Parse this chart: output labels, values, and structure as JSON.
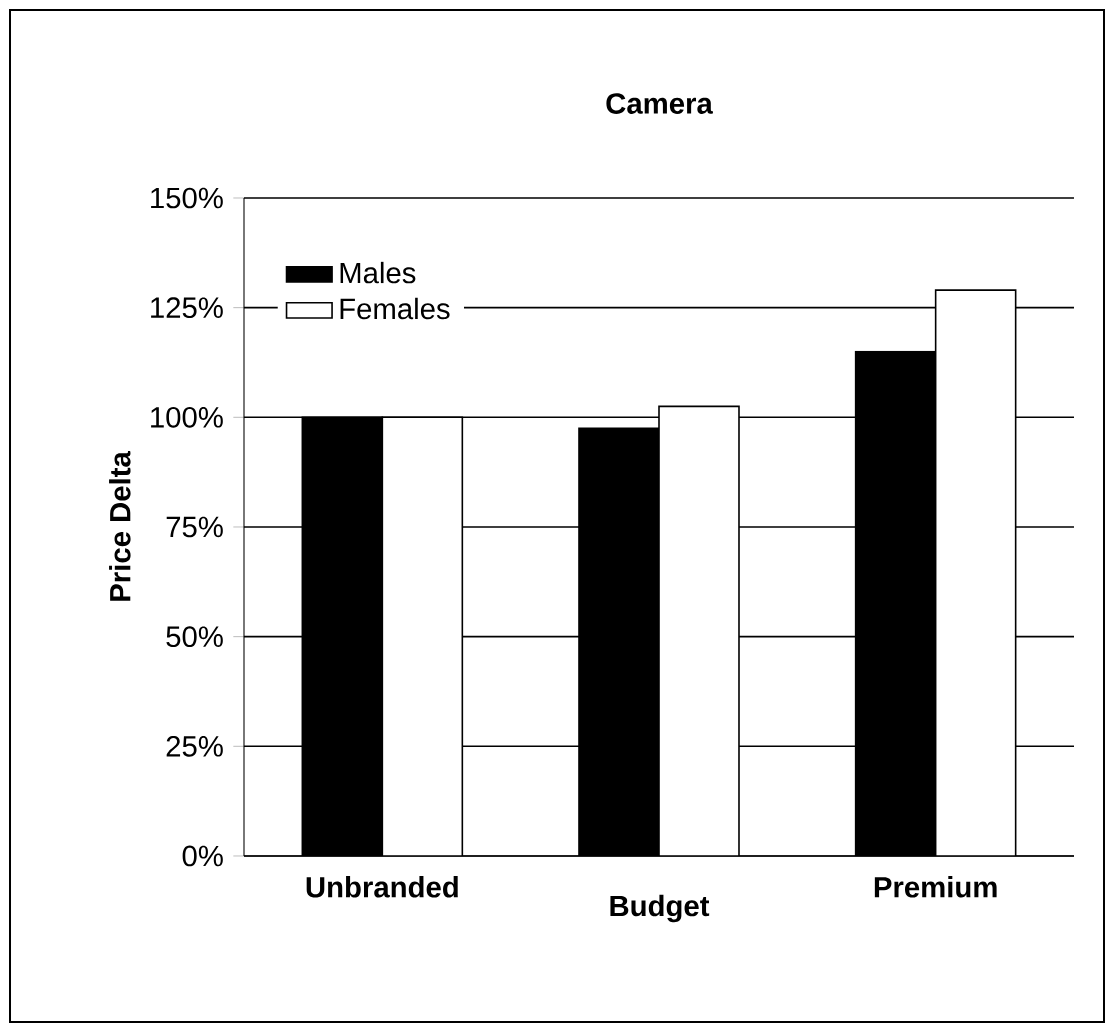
{
  "chart_data": {
    "type": "bar",
    "title": "Camera",
    "ylabel": "Price Delta",
    "categories": [
      "Unbranded",
      "Budget",
      "Premium"
    ],
    "series": [
      {
        "name": "Males",
        "color": "#000000",
        "values": [
          100,
          97.5,
          115
        ]
      },
      {
        "name": "Females",
        "color": "#ffffff",
        "values": [
          100,
          102.5,
          129
        ]
      }
    ],
    "ylim": [
      0,
      150
    ],
    "yticks": [
      {
        "value": 0,
        "label": "0%"
      },
      {
        "value": 25,
        "label": "25%"
      },
      {
        "value": 50,
        "label": "50%"
      },
      {
        "value": 75,
        "label": "75%"
      },
      {
        "value": 100,
        "label": "100%"
      },
      {
        "value": 125,
        "label": "125%"
      },
      {
        "value": 150,
        "label": "150%"
      }
    ],
    "grid": "y",
    "legend": "top left"
  }
}
